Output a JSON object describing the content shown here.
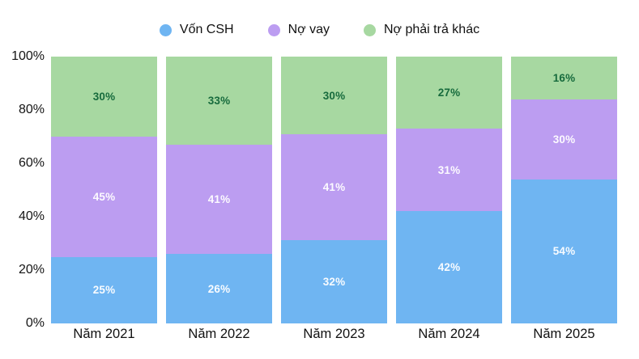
{
  "chart_data": {
    "type": "bar",
    "variant": "stacked-percent-column",
    "title": "",
    "xlabel": "",
    "ylabel": "",
    "grid": false,
    "legend_position": "top",
    "ylim": [
      0,
      100
    ],
    "y_ticks": [
      {
        "label": "0%",
        "value": 0
      },
      {
        "label": "20%",
        "value": 20
      },
      {
        "label": "40%",
        "value": 40
      },
      {
        "label": "60%",
        "value": 60
      },
      {
        "label": "80%",
        "value": 80
      },
      {
        "label": "100%",
        "value": 100
      }
    ],
    "categories": [
      "Năm 2021",
      "Năm 2022",
      "Năm 2023",
      "Năm 2024",
      "Năm 2025"
    ],
    "series": [
      {
        "name": "Vốn CSH",
        "color": "#6fb5f2",
        "label_color": "rgba(255,255,255,0.95)",
        "values": [
          25,
          26,
          32,
          42,
          54
        ],
        "data_labels": [
          "25%",
          "26%",
          "32%",
          "42%",
          "54%"
        ]
      },
      {
        "name": "Nợ vay",
        "color": "#bc9df1",
        "label_color": "rgba(255,255,255,0.95)",
        "values": [
          45,
          41,
          41,
          31,
          30
        ],
        "data_labels": [
          "45%",
          "41%",
          "41%",
          "31%",
          "30%"
        ]
      },
      {
        "name": "Nợ phải trả khác",
        "color": "#a7d8a1",
        "label_color": "#176b3d",
        "values": [
          30,
          33,
          30,
          27,
          16
        ],
        "data_labels": [
          "30%",
          "33%",
          "30%",
          "27%",
          "16%"
        ]
      }
    ],
    "stack_order_bottom_to_top": [
      "Vốn CSH",
      "Nợ vay",
      "Nợ phải trả khác"
    ],
    "legend_text_color": "#111111",
    "axis_text_color": "#141414"
  }
}
